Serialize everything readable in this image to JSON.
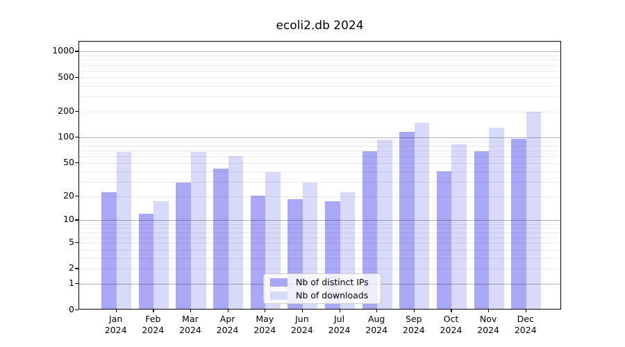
{
  "title": "ecoli2.db 2024",
  "legend": {
    "items": [
      {
        "label": "Nb of distinct IPs",
        "color": "#a8a8f6"
      },
      {
        "label": "Nb of downloads",
        "color": "#d9d9f9"
      }
    ]
  },
  "axis": {
    "ytick_labels": [
      "0",
      "1",
      "2",
      "5",
      "10",
      "20",
      "50",
      "100",
      "200",
      "500",
      "1000"
    ],
    "x_year_label": "2024"
  },
  "chart_data": {
    "type": "bar",
    "title": "ecoli2.db 2024",
    "categories": [
      "Jan",
      "Feb",
      "Mar",
      "Apr",
      "May",
      "Jun",
      "Jul",
      "Aug",
      "Sep",
      "Oct",
      "Nov",
      "Dec"
    ],
    "x_year": "2024",
    "series": [
      {
        "name": "Nb of distinct IPs",
        "color": "#a8a8f6",
        "values": [
          22,
          12,
          29,
          42,
          20,
          18,
          17,
          67,
          115,
          39,
          68,
          95
        ]
      },
      {
        "name": "Nb of downloads",
        "color": "#d9d9f9",
        "values": [
          66,
          17,
          66,
          59,
          38,
          29,
          22,
          93,
          145,
          82,
          127,
          195
        ]
      }
    ],
    "yscale": "log1p",
    "yticks": [
      0,
      1,
      2,
      5,
      10,
      20,
      50,
      100,
      200,
      500,
      1000
    ],
    "minor_yticks": [
      3,
      4,
      6,
      7,
      8,
      9,
      30,
      40,
      60,
      70,
      80,
      90,
      300,
      400,
      600,
      700,
      800,
      900
    ],
    "major_gridlines": [
      1,
      10,
      100,
      1000
    ],
    "ylim": [
      0,
      1300
    ],
    "grid": true,
    "legend_position": "lower center",
    "xlabel": "",
    "ylabel": ""
  },
  "colors": {
    "bar_ips": "#a8a8f6",
    "bar_downloads": "#d9d9f9",
    "grid_major": "#b3b3b3",
    "grid_minor": "#e8e8e8",
    "spine": "#000000",
    "background": "#ffffff"
  }
}
